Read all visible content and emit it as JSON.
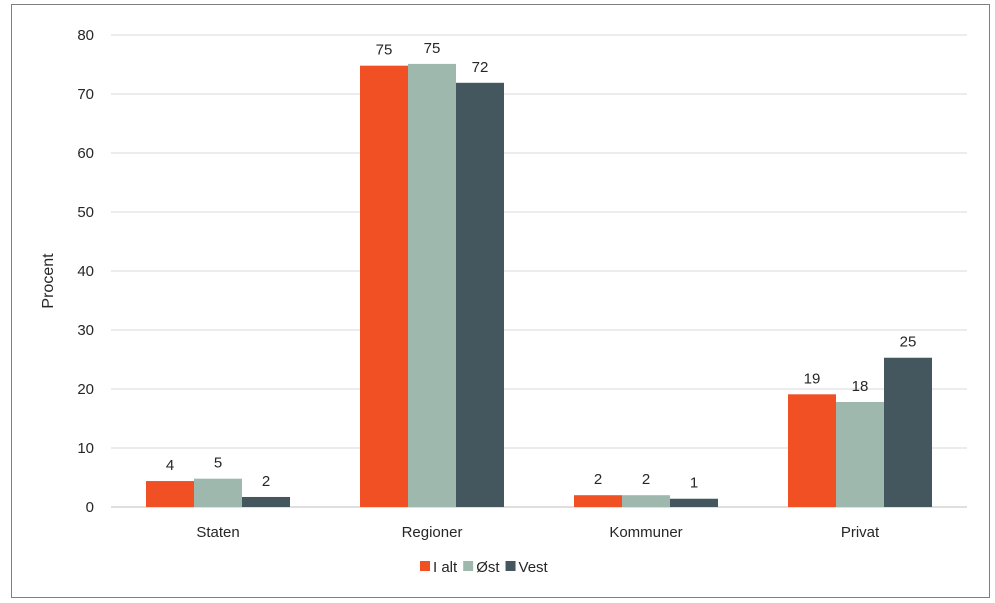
{
  "chart_data": {
    "type": "bar",
    "title": "",
    "xlabel": "",
    "ylabel": "Procent",
    "ylim": [
      0,
      80
    ],
    "yticks": [
      0,
      10,
      20,
      30,
      40,
      50,
      60,
      70,
      80
    ],
    "grid": true,
    "legend_position": "bottom",
    "categories": [
      "Staten",
      "Regioner",
      "Kommuner",
      "Privat"
    ],
    "series": [
      {
        "name": "I alt",
        "color": "#f15025",
        "values": [
          4.4,
          74.8,
          2.0,
          19.1
        ],
        "labels": [
          "4",
          "75",
          "2",
          "19"
        ]
      },
      {
        "name": "Øst",
        "color": "#9fb8ad",
        "values": [
          4.8,
          75.1,
          2.0,
          17.8
        ],
        "labels": [
          "5",
          "75",
          "2",
          "18"
        ]
      },
      {
        "name": "Vest",
        "color": "#44575f",
        "values": [
          1.7,
          71.9,
          1.4,
          25.3
        ],
        "labels": [
          "2",
          "72",
          "1",
          "25"
        ]
      }
    ]
  }
}
